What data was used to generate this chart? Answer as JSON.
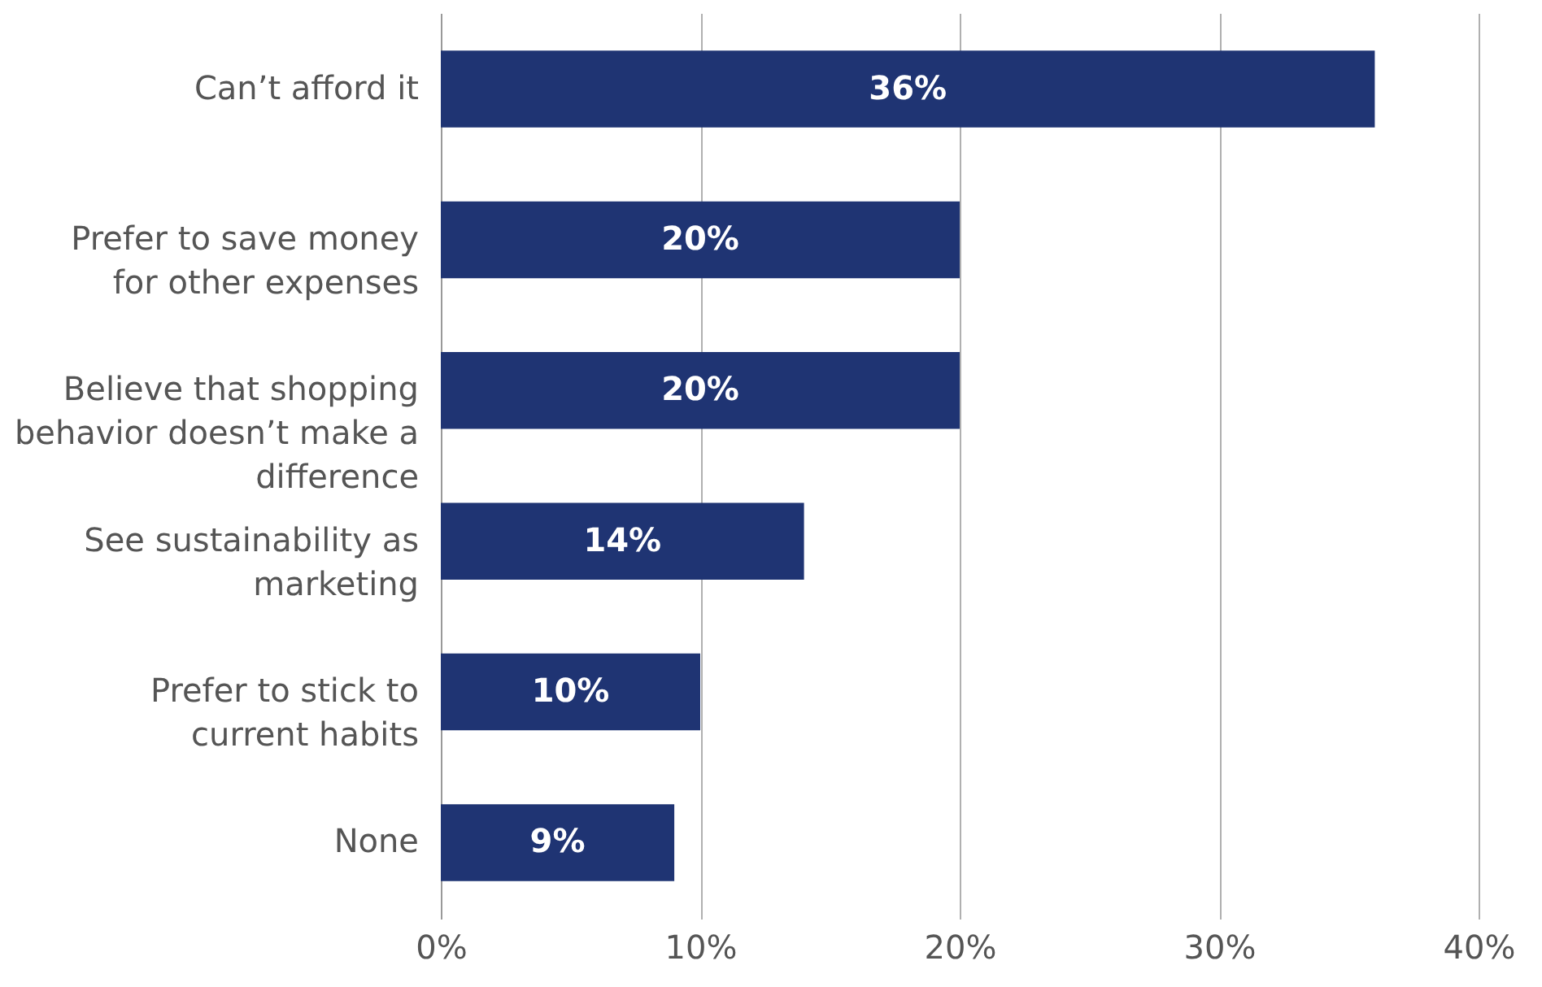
{
  "chart_data": {
    "type": "bar",
    "orientation": "horizontal",
    "categories": [
      "Can’t afford it",
      "Prefer to save money for other expenses",
      "Believe that shopping behavior doesn’t make a difference",
      "See sustainability as marketing",
      "Prefer to stick to current habits",
      "None"
    ],
    "values": [
      36,
      20,
      20,
      14,
      10,
      9
    ],
    "value_labels": [
      "36%",
      "20%",
      "20%",
      "14%",
      "10%",
      "9%"
    ],
    "color": "#1f3473",
    "xlim": [
      0,
      40
    ],
    "xticks": [
      {
        "value": 0,
        "label": "0%"
      },
      {
        "value": 10,
        "label": "10%"
      },
      {
        "value": 20,
        "label": "20%"
      },
      {
        "value": 30,
        "label": "30%"
      },
      {
        "value": 40,
        "label": "40%"
      }
    ],
    "grid": "x"
  }
}
